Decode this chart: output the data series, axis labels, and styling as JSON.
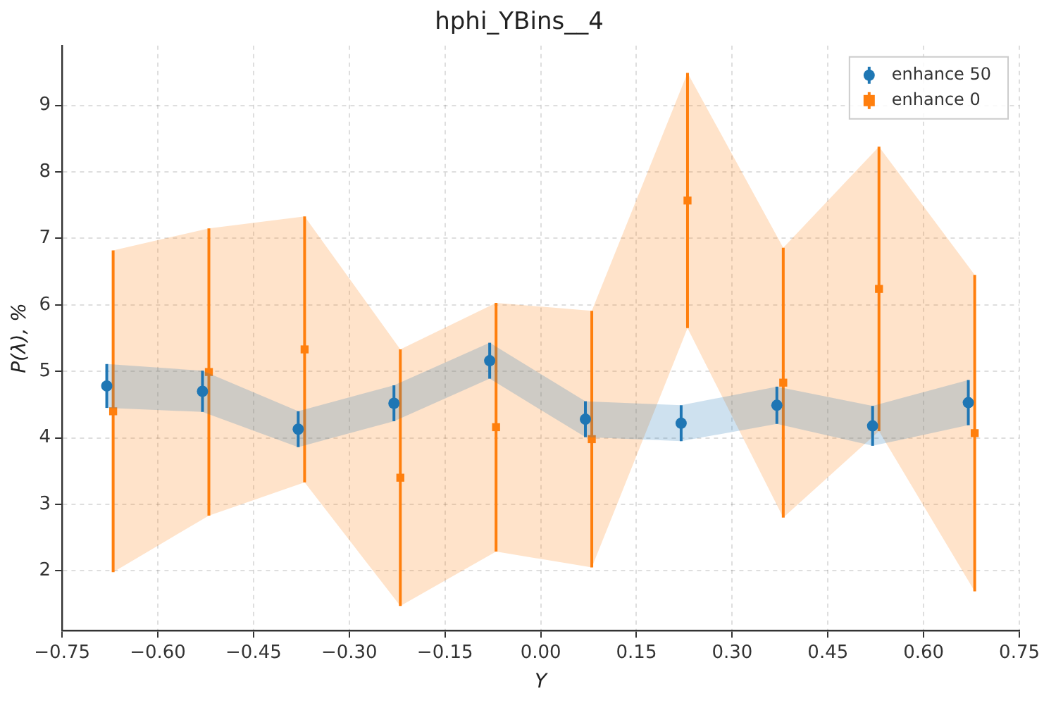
{
  "chart_data": {
    "type": "scatter",
    "title": "hphi_YBins__4",
    "xlabel": "Y",
    "ylabel": "P(λ), %",
    "xlim": [
      -0.75,
      0.75
    ],
    "xticks": [
      {
        "value": -0.75,
        "label": "−0.75"
      },
      {
        "value": -0.6,
        "label": "−0.60"
      },
      {
        "value": -0.45,
        "label": "−0.45"
      },
      {
        "value": -0.3,
        "label": "−0.30"
      },
      {
        "value": -0.15,
        "label": "−0.15"
      },
      {
        "value": 0,
        "label": "0.00"
      },
      {
        "value": 0.15,
        "label": "0.15"
      },
      {
        "value": 0.3,
        "label": "0.30"
      },
      {
        "value": 0.45,
        "label": "0.45"
      },
      {
        "value": 0.6,
        "label": "0.60"
      },
      {
        "value": 0.75,
        "label": "0.75"
      }
    ],
    "ylim": [
      1.1,
      9.9
    ],
    "yticks": [
      2,
      3,
      4,
      5,
      6,
      7,
      8,
      9
    ],
    "grid": true,
    "legend": "top right",
    "series": [
      {
        "name": "enhance 50",
        "color": "#1f77b4",
        "marker": "circle",
        "x": [
          -0.68,
          -0.53,
          -0.38,
          -0.23,
          -0.08,
          0.07,
          0.22,
          0.37,
          0.52,
          0.67
        ],
        "values": [
          4.78,
          4.7,
          4.13,
          4.52,
          5.16,
          4.28,
          4.22,
          4.49,
          4.18,
          4.53
        ],
        "errors": [
          0.33,
          0.31,
          0.27,
          0.27,
          0.27,
          0.27,
          0.27,
          0.28,
          0.3,
          0.34
        ],
        "lower": [
          4.45,
          4.39,
          3.86,
          4.25,
          4.89,
          4.01,
          3.95,
          4.21,
          3.88,
          4.19
        ],
        "upper": [
          5.11,
          5.01,
          4.4,
          4.79,
          5.43,
          4.55,
          4.49,
          4.77,
          4.48,
          4.87
        ]
      },
      {
        "name": "enhance 0",
        "color": "#ff7f0e",
        "marker": "square",
        "x": [
          -0.67,
          -0.52,
          -0.37,
          -0.22,
          -0.07,
          0.08,
          0.23,
          0.38,
          0.53,
          0.68
        ],
        "values": [
          4.4,
          4.99,
          5.33,
          3.4,
          4.16,
          3.98,
          7.57,
          4.83,
          6.24,
          4.07
        ],
        "errors": [
          2.42,
          2.16,
          2.0,
          1.93,
          1.87,
          1.93,
          1.92,
          2.03,
          2.14,
          2.38
        ],
        "lower": [
          1.98,
          2.83,
          3.33,
          1.47,
          2.29,
          2.05,
          5.65,
          2.8,
          4.1,
          1.69
        ],
        "upper": [
          6.82,
          7.15,
          7.33,
          5.33,
          6.03,
          5.91,
          9.49,
          6.86,
          8.38,
          6.45
        ]
      }
    ]
  }
}
